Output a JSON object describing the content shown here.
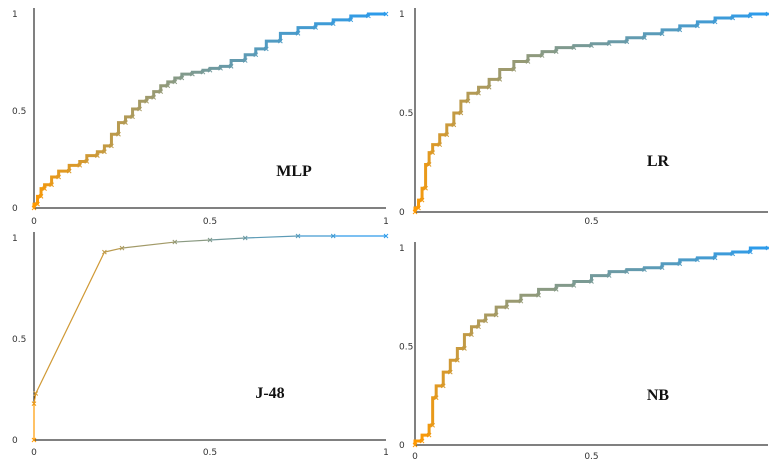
{
  "chart_data": [
    {
      "type": "line",
      "title": "MLP",
      "xlim": [
        0,
        1
      ],
      "ylim": [
        0,
        1
      ],
      "x_ticks": [
        "0",
        "0.5",
        "1"
      ],
      "y_ticks": [
        "0",
        "0.5",
        "1"
      ],
      "grid": false,
      "color_start": "#ff9900",
      "color_end": "#2d9bea",
      "x": [
        0,
        0.01,
        0.02,
        0.03,
        0.05,
        0.07,
        0.1,
        0.13,
        0.15,
        0.18,
        0.2,
        0.22,
        0.24,
        0.26,
        0.28,
        0.3,
        0.32,
        0.34,
        0.36,
        0.38,
        0.4,
        0.42,
        0.45,
        0.48,
        0.5,
        0.53,
        0.56,
        0.6,
        0.63,
        0.66,
        0.7,
        0.75,
        0.8,
        0.85,
        0.9,
        0.95,
        1.0
      ],
      "y": [
        0,
        0.02,
        0.06,
        0.1,
        0.12,
        0.16,
        0.19,
        0.22,
        0.24,
        0.27,
        0.29,
        0.32,
        0.38,
        0.44,
        0.47,
        0.51,
        0.55,
        0.57,
        0.6,
        0.63,
        0.65,
        0.67,
        0.69,
        0.7,
        0.71,
        0.72,
        0.73,
        0.76,
        0.79,
        0.82,
        0.86,
        0.9,
        0.93,
        0.95,
        0.97,
        0.99,
        1.0
      ]
    },
    {
      "type": "line",
      "title": "LR",
      "xlim": [
        0,
        1
      ],
      "ylim": [
        0,
        1
      ],
      "x_ticks": [
        "0.5"
      ],
      "y_ticks": [
        "0",
        "0.5",
        "1"
      ],
      "grid": false,
      "color_start": "#ff9900",
      "color_end": "#2d9bea",
      "x": [
        0,
        0.01,
        0.02,
        0.03,
        0.04,
        0.05,
        0.07,
        0.09,
        0.11,
        0.13,
        0.15,
        0.18,
        0.21,
        0.24,
        0.28,
        0.32,
        0.36,
        0.4,
        0.45,
        0.5,
        0.55,
        0.6,
        0.65,
        0.7,
        0.75,
        0.8,
        0.85,
        0.9,
        0.95,
        1.0
      ],
      "y": [
        0,
        0.02,
        0.06,
        0.12,
        0.24,
        0.3,
        0.34,
        0.39,
        0.44,
        0.5,
        0.56,
        0.6,
        0.63,
        0.67,
        0.72,
        0.76,
        0.79,
        0.81,
        0.83,
        0.84,
        0.85,
        0.86,
        0.88,
        0.9,
        0.92,
        0.94,
        0.96,
        0.98,
        0.99,
        1.0
      ]
    },
    {
      "type": "line",
      "title": "J-48",
      "xlim": [
        0,
        1
      ],
      "ylim": [
        0,
        1
      ],
      "x_ticks": [
        "0",
        "0.5",
        "1"
      ],
      "y_ticks": [
        "0",
        "0.5",
        "1"
      ],
      "grid": false,
      "color_start": "#ff9900",
      "color_end": "#2d9bea",
      "x": [
        0,
        0.0,
        0.005,
        0.2,
        0.25,
        0.4,
        0.5,
        0.6,
        0.75,
        0.85,
        1.0
      ],
      "y": [
        0,
        0.18,
        0.23,
        0.93,
        0.95,
        0.98,
        0.99,
        1.0,
        1.01,
        1.01,
        1.01
      ]
    },
    {
      "type": "line",
      "title": "NB",
      "xlim": [
        0,
        1
      ],
      "ylim": [
        0,
        1
      ],
      "x_ticks": [
        "0",
        "0.5"
      ],
      "y_ticks": [
        "0",
        "0.5",
        "1"
      ],
      "grid": false,
      "color_start": "#ff9900",
      "color_end": "#2d9bea",
      "x": [
        0,
        0.02,
        0.04,
        0.05,
        0.06,
        0.08,
        0.1,
        0.12,
        0.14,
        0.16,
        0.18,
        0.2,
        0.23,
        0.26,
        0.3,
        0.35,
        0.4,
        0.45,
        0.5,
        0.55,
        0.6,
        0.65,
        0.7,
        0.75,
        0.8,
        0.85,
        0.9,
        0.95,
        1.0
      ],
      "y": [
        0,
        0.02,
        0.05,
        0.1,
        0.24,
        0.3,
        0.37,
        0.43,
        0.49,
        0.56,
        0.6,
        0.63,
        0.66,
        0.7,
        0.73,
        0.76,
        0.79,
        0.81,
        0.83,
        0.86,
        0.88,
        0.89,
        0.9,
        0.92,
        0.94,
        0.95,
        0.97,
        0.98,
        1.0
      ]
    }
  ]
}
